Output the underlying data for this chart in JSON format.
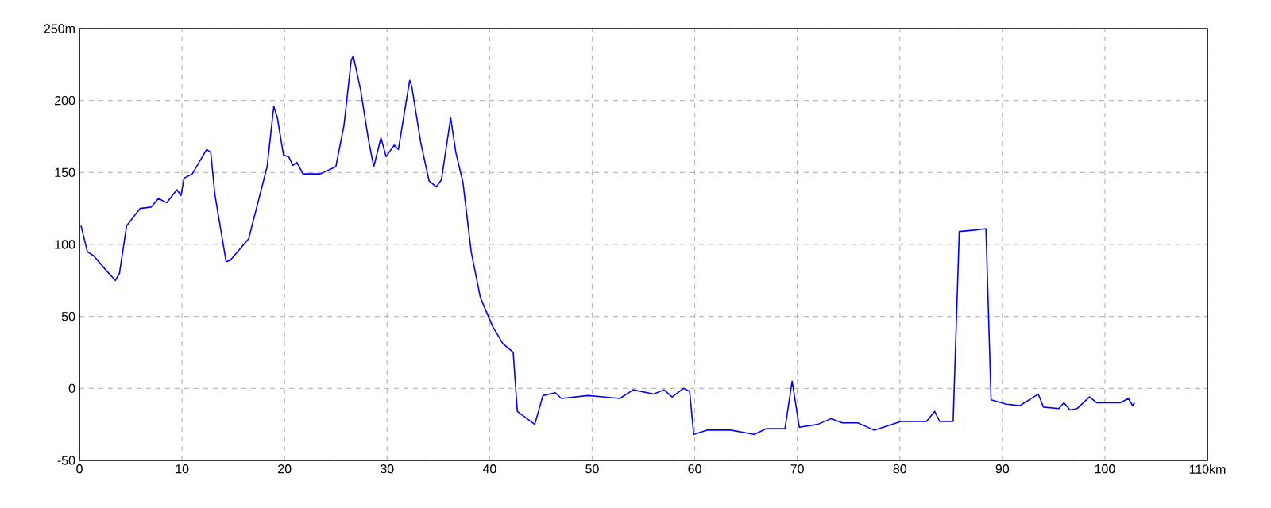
{
  "chart_data": {
    "type": "line",
    "x": [
      0.15,
      0.77,
      1.4,
      2.6,
      3.5,
      3.9,
      4.6,
      5.9,
      7.0,
      7.7,
      8.5,
      9.5,
      9.9,
      10.2,
      11.0,
      12.4,
      12.8,
      13.2,
      14.3,
      14.7,
      16.5,
      18.3,
      18.95,
      19.3,
      19.9,
      20.4,
      20.8,
      21.2,
      21.8,
      23.5,
      25.0,
      25.8,
      26.5,
      26.7,
      27.4,
      28.2,
      28.7,
      29.4,
      29.9,
      30.7,
      31.1,
      32.2,
      32.4,
      33.3,
      34.1,
      34.8,
      35.3,
      36.2,
      36.7,
      37.4,
      38.2,
      39.1,
      40.3,
      41.3,
      42.3,
      42.7,
      44.4,
      45.2,
      46.4,
      47.0,
      49.6,
      52.7,
      54.0,
      56.0,
      57.0,
      57.8,
      58.9,
      59.5,
      59.9,
      61.2,
      63.5,
      65.8,
      67.0,
      68.8,
      69.5,
      70.2,
      72.0,
      73.3,
      74.4,
      75.9,
      77.5,
      80.1,
      82.6,
      83.4,
      83.9,
      85.2,
      85.8,
      87.3,
      88.4,
      88.9,
      90.4,
      91.7,
      93.5,
      94.0,
      95.5,
      96.0,
      96.6,
      97.3,
      98.5,
      99.2,
      101.5,
      102.3,
      102.7,
      102.9
    ],
    "series": [
      {
        "color": "#0000ff",
        "values": [
          113,
          95,
          92,
          82,
          75,
          80,
          113,
          125,
          126,
          132,
          129,
          138,
          134,
          146,
          149,
          166,
          164,
          135,
          88,
          89,
          104,
          154,
          196,
          188,
          162,
          161,
          155,
          157,
          149,
          149,
          154,
          183,
          228,
          231,
          208,
          172,
          154,
          174,
          161,
          169,
          166,
          214,
          210,
          170,
          144,
          140,
          145,
          188,
          164,
          143,
          95,
          63,
          43,
          31,
          25,
          -16,
          -25,
          -5,
          -3,
          -7,
          -5,
          -7,
          -1,
          -4,
          -1,
          -6,
          0,
          -2,
          -32,
          -29,
          -29,
          -32,
          -28,
          -28,
          5,
          -27,
          -25,
          -21,
          -24,
          -24,
          -29,
          -23,
          -23,
          -16,
          -23,
          -23,
          109,
          110,
          111,
          -8,
          -11,
          -12,
          -4,
          -13,
          -14,
          -10,
          -15,
          -14,
          -6,
          -10,
          -10,
          -7,
          -12,
          -10
        ]
      }
    ],
    "xlim": [
      0,
      110
    ],
    "ylim": [
      -50,
      250
    ],
    "xticks": [
      0,
      10,
      20,
      30,
      40,
      50,
      60,
      70,
      80,
      90,
      100,
      {
        "value": 110,
        "label": "110km"
      }
    ],
    "yticks": [
      -50,
      0,
      50,
      100,
      150,
      200,
      {
        "value": 250,
        "label": "250m"
      }
    ],
    "grid": true,
    "line_style": "solid",
    "marker": "none"
  }
}
